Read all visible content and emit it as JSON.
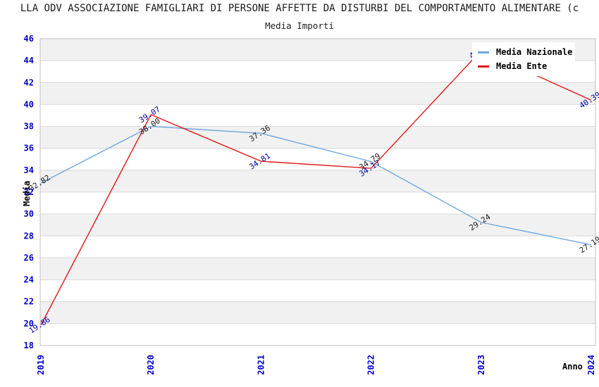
{
  "page": {
    "title": "LLA ODV ASSOCIAZIONE FAMIGLIARI DI PERSONE AFFETTE DA DISTURBI DEL COMPORTAMENTO ALIMENTARE (c"
  },
  "chart_data": {
    "type": "line",
    "title": "Media Importi",
    "xlabel": "Anno",
    "ylabel": "Media",
    "x": [
      2019,
      2020,
      2021,
      2022,
      2023,
      2024
    ],
    "ylim": [
      18,
      46
    ],
    "ytick_step": 2,
    "yticks": [
      18,
      20,
      22,
      24,
      26,
      28,
      30,
      32,
      34,
      36,
      38,
      40,
      42,
      44,
      46
    ],
    "grid": "horizontal-bands-alternating",
    "legend_position": "top-right",
    "series": [
      {
        "name": "Media Nazionale",
        "color": "#6FA8E0",
        "label_color": "#1a1a1a",
        "values": [
          32.82,
          38.0,
          37.36,
          34.79,
          29.24,
          27.19
        ]
      },
      {
        "name": "Media Ente",
        "color": "#E01818",
        "label_color": "#0000AA",
        "values": [
          19.86,
          39.07,
          34.81,
          34.17,
          44.92,
          40.39
        ]
      }
    ],
    "colors": {
      "tick_label": "#0000CC",
      "band": "#F1F1F1",
      "band_alt": "#FFFFFF",
      "gridline": "#D8D8D8",
      "frame": "#C0C0C0",
      "title_text": "#1a1a1a"
    }
  }
}
